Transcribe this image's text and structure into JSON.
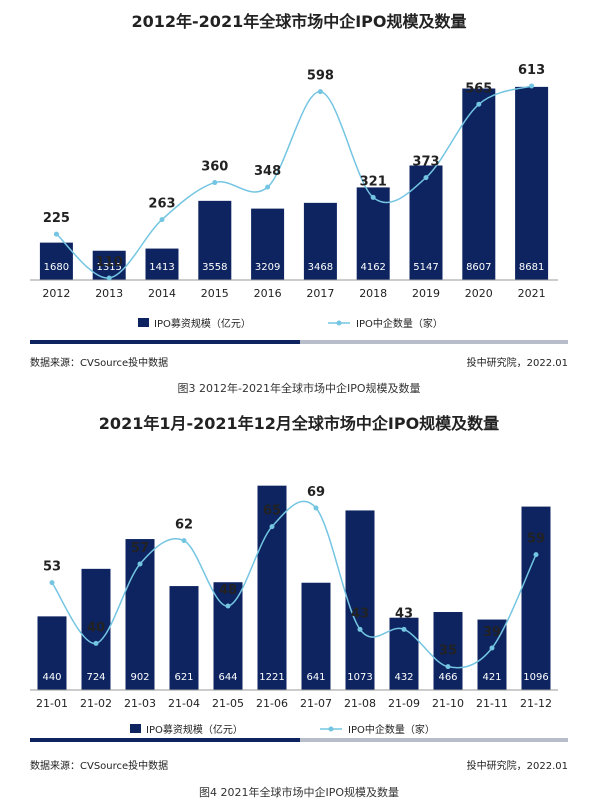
{
  "colors": {
    "bar": "#0d2460",
    "line": "#74c5e2",
    "divider_dark": "#0d2460",
    "divider_light": "#b8bec9",
    "axis": "#999999"
  },
  "chart1": {
    "source": "数据来源：CVSource投中数据",
    "credit": "投中研究院，2022.01",
    "caption": "图3 2012年-2021年全球市场中企IPO规模及数量"
  },
  "chart2": {
    "source": "数据来源：CVSource投中数据",
    "credit": "投中研究院，2022.01",
    "caption": "图4 2021年全球市场中企IPO规模及数量"
  },
  "chart_data": [
    {
      "type": "bar",
      "title": "2012年-2021年全球市场中企IPO规模及数量",
      "categories": [
        "2012",
        "2013",
        "2014",
        "2015",
        "2016",
        "2017",
        "2018",
        "2019",
        "2020",
        "2021"
      ],
      "series": [
        {
          "name": "IPO募资规模（亿元）",
          "type": "bar",
          "values": [
            1680,
            1315,
            1413,
            3558,
            3209,
            3468,
            4162,
            5147,
            8607,
            8681
          ]
        },
        {
          "name": "IPO中企数量（家）",
          "type": "line",
          "values": [
            225,
            110,
            263,
            360,
            348,
            598,
            321,
            373,
            565,
            613
          ]
        }
      ],
      "legend": "bottom",
      "grid": false
    },
    {
      "type": "bar",
      "title": "2021年1月-2021年12月全球市场中企IPO规模及数量",
      "categories": [
        "21-01",
        "21-02",
        "21-03",
        "21-04",
        "21-05",
        "21-06",
        "21-07",
        "21-08",
        "21-09",
        "21-10",
        "21-11",
        "21-12"
      ],
      "series": [
        {
          "name": "IPO募资规模（亿元）",
          "type": "bar",
          "values": [
            440,
            724,
            902,
            621,
            644,
            1221,
            641,
            1073,
            432,
            466,
            421,
            1096
          ]
        },
        {
          "name": "IPO中企数量（家）",
          "type": "line",
          "values": [
            53,
            40,
            57,
            62,
            48,
            65,
            69,
            43,
            43,
            35,
            39,
            59
          ]
        }
      ],
      "legend": "bottom",
      "grid": false
    }
  ]
}
